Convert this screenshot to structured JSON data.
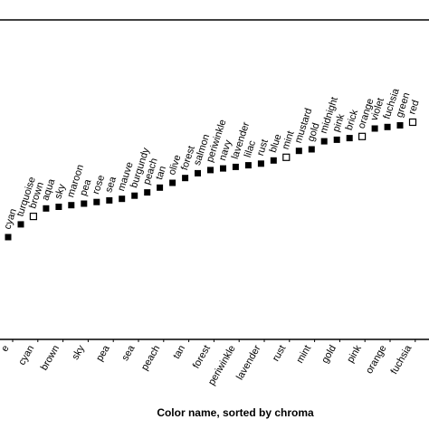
{
  "chart_data": {
    "type": "scatter",
    "title": "",
    "xlabel": "Color name, sorted by chroma",
    "ylabel": "",
    "grid": false,
    "legend": "none",
    "marker_colors": {
      "filled": "#000000",
      "open": "#ffffff",
      "edge": "#000000"
    },
    "points": [
      {
        "label": "cyan",
        "y": 0.32,
        "open": false
      },
      {
        "label": "turquoise",
        "y": 0.36,
        "open": false
      },
      {
        "label": "brown",
        "y": 0.385,
        "open": true
      },
      {
        "label": "aqua",
        "y": 0.41,
        "open": false
      },
      {
        "label": "sky",
        "y": 0.415,
        "open": false
      },
      {
        "label": "maroon",
        "y": 0.42,
        "open": false
      },
      {
        "label": "pea",
        "y": 0.425,
        "open": false
      },
      {
        "label": "rose",
        "y": 0.43,
        "open": false
      },
      {
        "label": "sea",
        "y": 0.435,
        "open": false
      },
      {
        "label": "mauve",
        "y": 0.44,
        "open": false
      },
      {
        "label": "burgundy",
        "y": 0.45,
        "open": false
      },
      {
        "label": "peach",
        "y": 0.46,
        "open": false
      },
      {
        "label": "tan",
        "y": 0.475,
        "open": false
      },
      {
        "label": "olive",
        "y": 0.49,
        "open": false
      },
      {
        "label": "forest",
        "y": 0.505,
        "open": false
      },
      {
        "label": "salmon",
        "y": 0.52,
        "open": false
      },
      {
        "label": "periwinkle",
        "y": 0.53,
        "open": false
      },
      {
        "label": "navy",
        "y": 0.535,
        "open": false
      },
      {
        "label": "lavender",
        "y": 0.54,
        "open": false
      },
      {
        "label": "lilac",
        "y": 0.545,
        "open": false
      },
      {
        "label": "rust",
        "y": 0.55,
        "open": false
      },
      {
        "label": "blue",
        "y": 0.56,
        "open": false
      },
      {
        "label": "mint",
        "y": 0.57,
        "open": true
      },
      {
        "label": "mustard",
        "y": 0.59,
        "open": false
      },
      {
        "label": "gold",
        "y": 0.595,
        "open": false
      },
      {
        "label": "midnight",
        "y": 0.62,
        "open": false
      },
      {
        "label": "pink",
        "y": 0.625,
        "open": false
      },
      {
        "label": "brick",
        "y": 0.63,
        "open": false
      },
      {
        "label": "orange",
        "y": 0.635,
        "open": true
      },
      {
        "label": "violet",
        "y": 0.66,
        "open": false
      },
      {
        "label": "fuchsia",
        "y": 0.665,
        "open": false
      },
      {
        "label": "green",
        "y": 0.67,
        "open": false
      },
      {
        "label": "red",
        "y": 0.68,
        "open": true
      }
    ],
    "x_tick_labels": [
      "e",
      "cyan",
      "brown",
      "sky",
      "pea",
      "sea",
      "peach",
      "tan",
      "forest",
      "periwinkle",
      "lavender",
      "rust",
      "mint",
      "gold",
      "pink",
      "orange",
      "fuchsia",
      "r"
    ],
    "ylim": [
      0,
      1
    ]
  }
}
